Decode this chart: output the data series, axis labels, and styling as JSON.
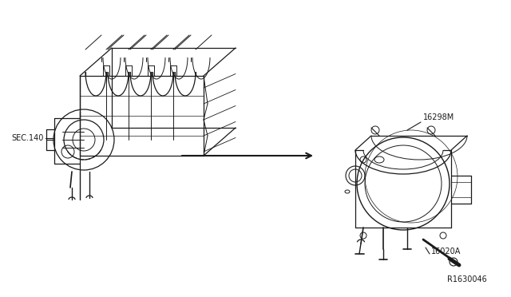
{
  "background_color": "#ffffff",
  "line_color": "#1a1a1a",
  "label_sec140": "SEC.140",
  "label_16298M": "16298M",
  "label_16020A": "16020A",
  "label_ref": "R1630046",
  "fig_width": 6.4,
  "fig_height": 3.72,
  "dpi": 100
}
